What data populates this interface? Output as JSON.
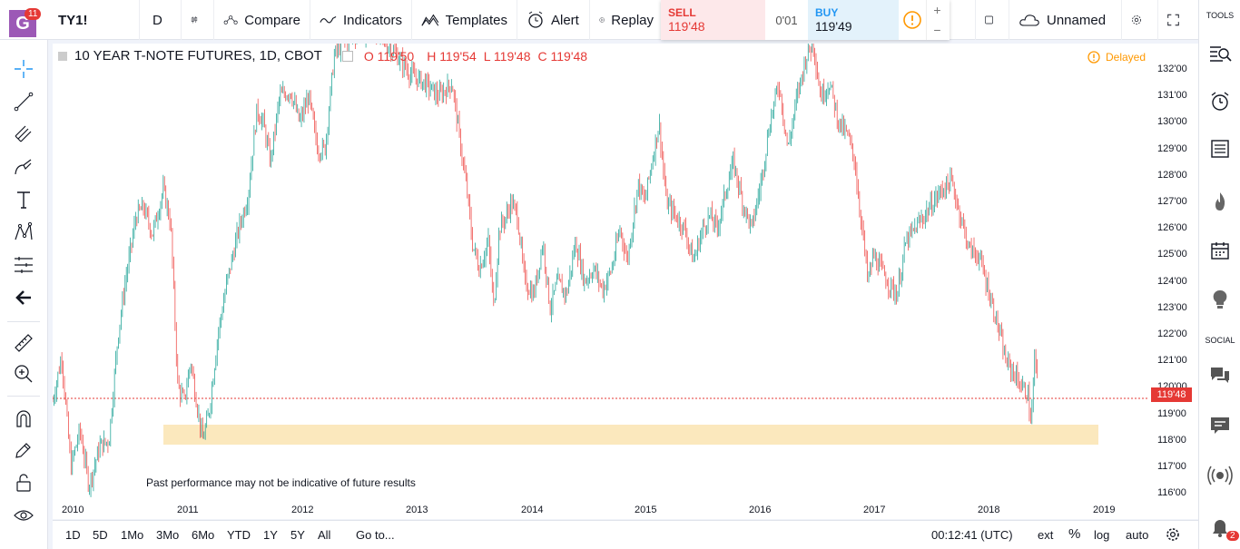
{
  "header": {
    "logo_letter": "G",
    "logo_badge": "11",
    "symbol": "TY1!",
    "interval": "D",
    "compare": "Compare",
    "indicators": "Indicators",
    "templates": "Templates",
    "alert": "Alert",
    "replay": "Replay",
    "layout_name": "Unnamed"
  },
  "trade": {
    "sell_label": "SELL",
    "sell_price": "119'48",
    "spread": "0'01",
    "buy_label": "BUY",
    "buy_price": "119'49",
    "plus": "+",
    "minus": "−"
  },
  "legend": {
    "title": "10 YEAR T-NOTE FUTURES, 1D, CBOT",
    "open": "O 119'50",
    "high": "H 119'54",
    "low": "L 119'48",
    "close": "C 119'48"
  },
  "delayed": "Delayed",
  "disclaimer": "Past performance may not be indicative of future results",
  "price_axis": [
    "132'00",
    "131'00",
    "130'00",
    "129'00",
    "128'00",
    "127'00",
    "126'00",
    "125'00",
    "124'00",
    "123'00",
    "122'00",
    "121'00",
    "120'00",
    "119'00",
    "118'00",
    "117'00",
    "116'00"
  ],
  "current_price": "119'48",
  "time_axis": [
    "2010",
    "2011",
    "2012",
    "2013",
    "2014",
    "2015",
    "2016",
    "2017",
    "2018",
    "2019"
  ],
  "bottom": {
    "ranges": [
      "1D",
      "5D",
      "1Mo",
      "3Mo",
      "6Mo",
      "YTD",
      "1Y",
      "5Y",
      "All"
    ],
    "goto": "Go to...",
    "clock": "00:12:41 (UTC)",
    "ext": "ext",
    "percent": "%",
    "log": "log",
    "auto": "auto"
  },
  "right_panel": {
    "tools_label": "TOOLS",
    "social_label": "SOCIAL",
    "notif_count": "2"
  },
  "colors": {
    "up": "#26a69a",
    "down": "#ef5350",
    "zone": "#fbe8bd",
    "price_line": "#e53935"
  }
}
